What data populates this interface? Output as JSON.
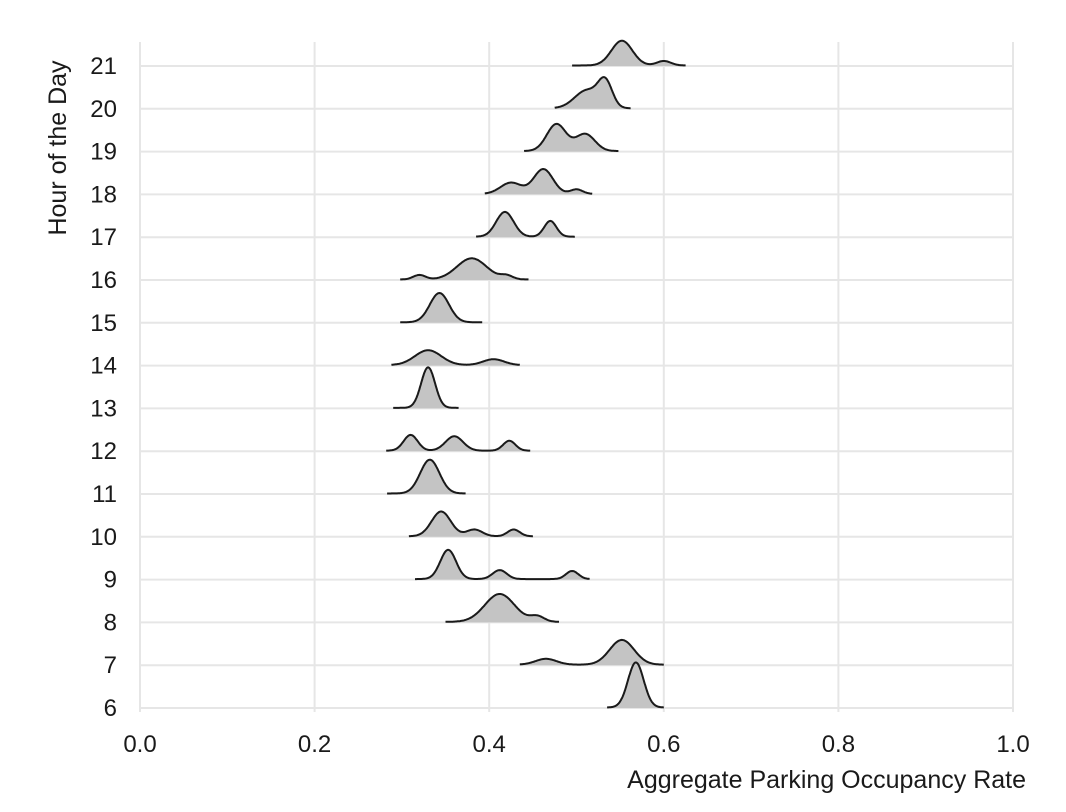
{
  "chart_data": {
    "type": "ridgeline",
    "xlabel": "Aggregate Parking Occupancy Rate",
    "ylabel": "Hour of the Day",
    "xlim": [
      0.0,
      1.0
    ],
    "x_ticks": [
      0.0,
      0.2,
      0.4,
      0.6,
      0.8,
      1.0
    ],
    "x_tick_labels": [
      "0.0",
      "0.2",
      "0.4",
      "0.6",
      "0.8",
      "1.0"
    ],
    "grid": true,
    "fill_color": "#c4c4c4",
    "line_color": "#1a1a1a",
    "series": [
      {
        "hour": "6",
        "range": [
          0.535,
          0.6
        ],
        "peaks": [
          {
            "x": 0.568,
            "sd": 0.009,
            "h": 1.0
          }
        ]
      },
      {
        "hour": "7",
        "range": [
          0.435,
          0.6
        ],
        "peaks": [
          {
            "x": 0.465,
            "sd": 0.012,
            "h": 0.13
          },
          {
            "x": 0.552,
            "sd": 0.014,
            "h": 0.55
          }
        ]
      },
      {
        "hour": "8",
        "range": [
          0.35,
          0.48
        ],
        "peaks": [
          {
            "x": 0.412,
            "sd": 0.017,
            "h": 0.62
          },
          {
            "x": 0.455,
            "sd": 0.008,
            "h": 0.12
          }
        ]
      },
      {
        "hour": "9",
        "range": [
          0.315,
          0.515
        ],
        "peaks": [
          {
            "x": 0.353,
            "sd": 0.009,
            "h": 0.65
          },
          {
            "x": 0.412,
            "sd": 0.008,
            "h": 0.2
          },
          {
            "x": 0.495,
            "sd": 0.007,
            "h": 0.18
          }
        ]
      },
      {
        "hour": "10",
        "range": [
          0.308,
          0.45
        ],
        "peaks": [
          {
            "x": 0.345,
            "sd": 0.011,
            "h": 0.55
          },
          {
            "x": 0.383,
            "sd": 0.009,
            "h": 0.15
          },
          {
            "x": 0.428,
            "sd": 0.007,
            "h": 0.15
          }
        ]
      },
      {
        "hour": "11",
        "range": [
          0.283,
          0.373
        ],
        "peaks": [
          {
            "x": 0.332,
            "sd": 0.011,
            "h": 0.75
          }
        ]
      },
      {
        "hour": "12",
        "range": [
          0.282,
          0.447
        ],
        "peaks": [
          {
            "x": 0.31,
            "sd": 0.008,
            "h": 0.35
          },
          {
            "x": 0.36,
            "sd": 0.01,
            "h": 0.32
          },
          {
            "x": 0.423,
            "sd": 0.007,
            "h": 0.22
          }
        ]
      },
      {
        "hour": "13",
        "range": [
          0.29,
          0.365
        ],
        "peaks": [
          {
            "x": 0.33,
            "sd": 0.008,
            "h": 0.9
          }
        ]
      },
      {
        "hour": "14",
        "range": [
          0.288,
          0.435
        ],
        "peaks": [
          {
            "x": 0.33,
            "sd": 0.015,
            "h": 0.33
          },
          {
            "x": 0.405,
            "sd": 0.012,
            "h": 0.13
          }
        ]
      },
      {
        "hour": "15",
        "range": [
          0.298,
          0.392
        ],
        "peaks": [
          {
            "x": 0.343,
            "sd": 0.011,
            "h": 0.65
          }
        ]
      },
      {
        "hour": "16",
        "range": [
          0.298,
          0.445
        ],
        "peaks": [
          {
            "x": 0.32,
            "sd": 0.007,
            "h": 0.1
          },
          {
            "x": 0.38,
            "sd": 0.017,
            "h": 0.47
          },
          {
            "x": 0.42,
            "sd": 0.007,
            "h": 0.08
          }
        ]
      },
      {
        "hour": "17",
        "range": [
          0.385,
          0.498
        ],
        "peaks": [
          {
            "x": 0.418,
            "sd": 0.01,
            "h": 0.55
          },
          {
            "x": 0.47,
            "sd": 0.007,
            "h": 0.35
          }
        ]
      },
      {
        "hour": "18",
        "range": [
          0.395,
          0.518
        ],
        "peaks": [
          {
            "x": 0.425,
            "sd": 0.012,
            "h": 0.25
          },
          {
            "x": 0.462,
            "sd": 0.011,
            "h": 0.55
          },
          {
            "x": 0.5,
            "sd": 0.007,
            "h": 0.1
          }
        ]
      },
      {
        "hour": "19",
        "range": [
          0.44,
          0.548
        ],
        "peaks": [
          {
            "x": 0.477,
            "sd": 0.011,
            "h": 0.6
          },
          {
            "x": 0.51,
            "sd": 0.011,
            "h": 0.38
          }
        ]
      },
      {
        "hour": "20",
        "range": [
          0.475,
          0.562
        ],
        "peaks": [
          {
            "x": 0.512,
            "sd": 0.014,
            "h": 0.4
          },
          {
            "x": 0.533,
            "sd": 0.008,
            "h": 0.55
          }
        ]
      },
      {
        "hour": "21",
        "range": [
          0.495,
          0.625
        ],
        "peaks": [
          {
            "x": 0.552,
            "sd": 0.012,
            "h": 0.55
          },
          {
            "x": 0.6,
            "sd": 0.008,
            "h": 0.1
          }
        ]
      }
    ]
  }
}
